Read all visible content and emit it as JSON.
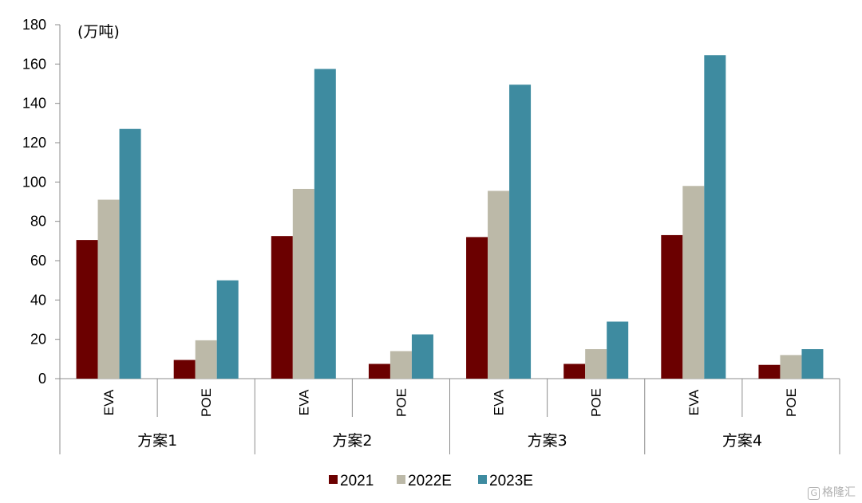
{
  "chart_data": {
    "type": "bar",
    "unit_label": "(万吨)",
    "ylim": [
      0,
      180
    ],
    "yticks": [
      0,
      20,
      40,
      60,
      80,
      100,
      120,
      140,
      160,
      180
    ],
    "groups": [
      {
        "name": "方案1",
        "categories": [
          "EVA",
          "POE"
        ]
      },
      {
        "name": "方案2",
        "categories": [
          "EVA",
          "POE"
        ]
      },
      {
        "name": "方案3",
        "categories": [
          "EVA",
          "POE"
        ]
      },
      {
        "name": "方案4",
        "categories": [
          "EVA",
          "POE"
        ]
      }
    ],
    "categories": [
      "EVA",
      "POE",
      "EVA",
      "POE",
      "EVA",
      "POE",
      "EVA",
      "POE"
    ],
    "series": [
      {
        "name": "2021",
        "color": "#6b0000",
        "values": [
          70.5,
          9.5,
          72.5,
          7.5,
          72,
          7.5,
          73,
          7
        ]
      },
      {
        "name": "2022E",
        "color": "#bcb9a8",
        "values": [
          91,
          19.5,
          96.5,
          14,
          95.5,
          15,
          98,
          12
        ]
      },
      {
        "name": "2023E",
        "color": "#3e8ba0",
        "values": [
          127,
          50,
          157.5,
          22.5,
          149.5,
          29,
          164.5,
          15
        ]
      }
    ],
    "legend_position": "bottom",
    "grid": false
  },
  "watermark": {
    "icon": "G",
    "text": "格隆汇"
  }
}
